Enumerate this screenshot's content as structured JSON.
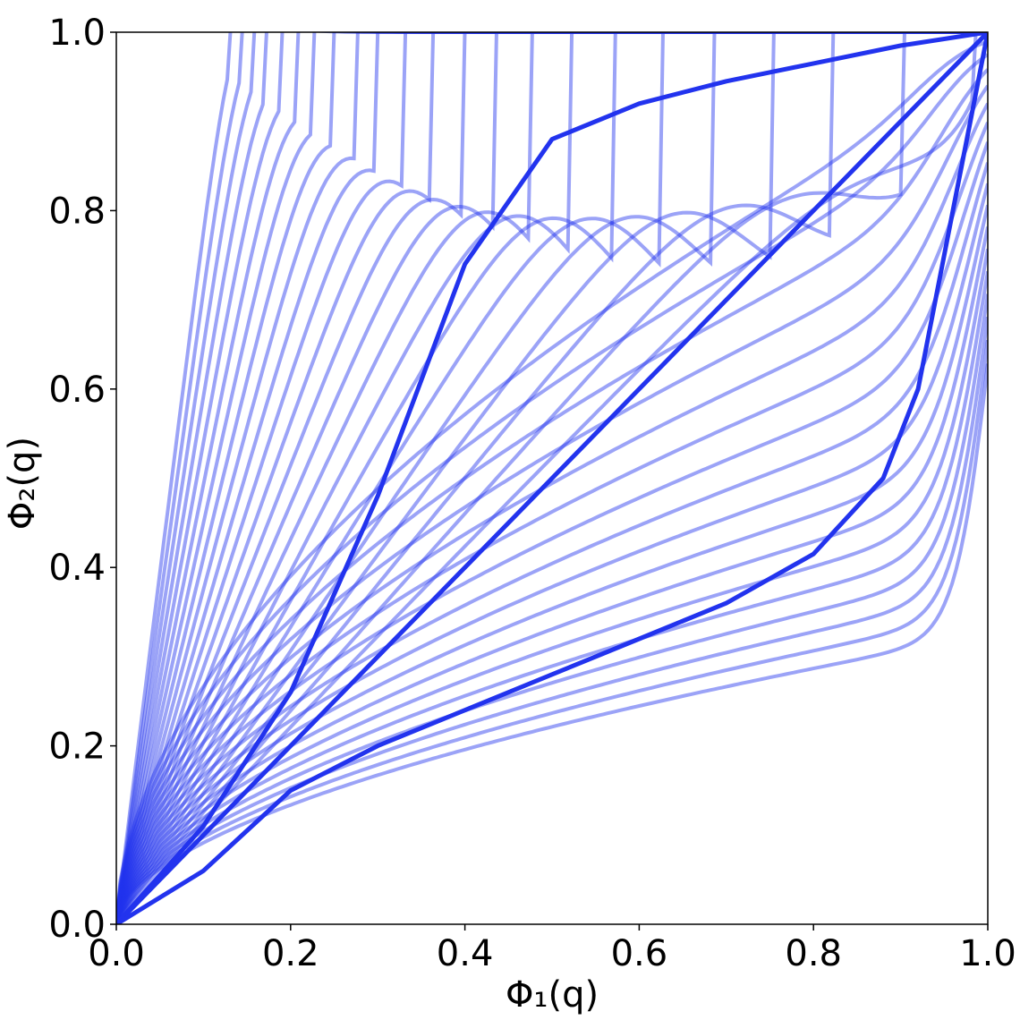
{
  "chart_data": {
    "type": "line",
    "xlabel": "Φ₁(q)",
    "ylabel": "Φ₂(q)",
    "xlim": [
      0.0,
      1.0
    ],
    "ylim": [
      0.0,
      1.0
    ],
    "xticks": [
      "0.0",
      "0.2",
      "0.4",
      "0.6",
      "0.8",
      "1.0"
    ],
    "yticks": [
      "0.0",
      "0.2",
      "0.4",
      "0.6",
      "0.8",
      "1.0"
    ],
    "grid": false,
    "legend": "none",
    "line_color": "#2233ee",
    "series_family": {
      "description_of_mapping": "curve family through (0,0) and (1,1); faint curves plus three highlighted curves",
      "faint_count": 40,
      "faint_exponents_min": 0.12,
      "faint_exponents_max": 5.0,
      "highlighted": [
        {
          "y_at_x": [
            [
              0.0,
              0.0
            ],
            [
              0.1,
              0.11
            ],
            [
              0.2,
              0.26
            ],
            [
              0.3,
              0.48
            ],
            [
              0.4,
              0.74
            ],
            [
              0.5,
              0.88
            ],
            [
              0.6,
              0.92
            ],
            [
              0.7,
              0.945
            ],
            [
              0.8,
              0.965
            ],
            [
              0.9,
              0.985
            ],
            [
              1.0,
              1.0
            ]
          ]
        },
        {
          "y_at_x": [
            [
              0.0,
              0.0
            ],
            [
              0.2,
              0.2
            ],
            [
              0.4,
              0.4
            ],
            [
              0.6,
              0.6
            ],
            [
              0.8,
              0.8
            ],
            [
              1.0,
              1.0
            ]
          ]
        },
        {
          "y_at_x": [
            [
              0.0,
              0.0
            ],
            [
              0.1,
              0.06
            ],
            [
              0.2,
              0.15
            ],
            [
              0.3,
              0.2
            ],
            [
              0.4,
              0.24
            ],
            [
              0.5,
              0.28
            ],
            [
              0.6,
              0.32
            ],
            [
              0.7,
              0.36
            ],
            [
              0.8,
              0.415
            ],
            [
              0.88,
              0.5
            ],
            [
              0.92,
              0.6
            ],
            [
              0.96,
              0.8
            ],
            [
              1.0,
              1.0
            ]
          ]
        }
      ]
    }
  }
}
